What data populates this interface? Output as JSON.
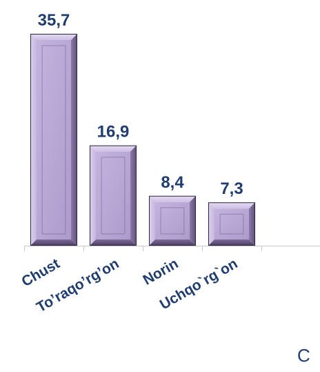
{
  "chart_data": {
    "type": "bar",
    "categories": [
      "Chust",
      "To'raqo'rg'on",
      "Norin",
      "Uchqo`rg`on"
    ],
    "category_labels": [
      "Chust",
      "To’raqo’rg’on",
      "Norin",
      "Uchqo`rg`on"
    ],
    "values": [
      35.7,
      16.9,
      8.4,
      7.3
    ],
    "value_labels": [
      "35,7",
      "16,9",
      "8,4",
      "7,3"
    ],
    "title": "",
    "xlabel": "",
    "ylabel": "",
    "ylim": [
      0,
      37
    ],
    "grid": false,
    "legend": "none"
  },
  "fragments": {
    "corner_text": "C"
  },
  "colors": {
    "bar_fill": "#b9a7d6",
    "bar_edge": "#2a2340",
    "label": "#1f3d6e",
    "axis": "#c8c8c8"
  }
}
